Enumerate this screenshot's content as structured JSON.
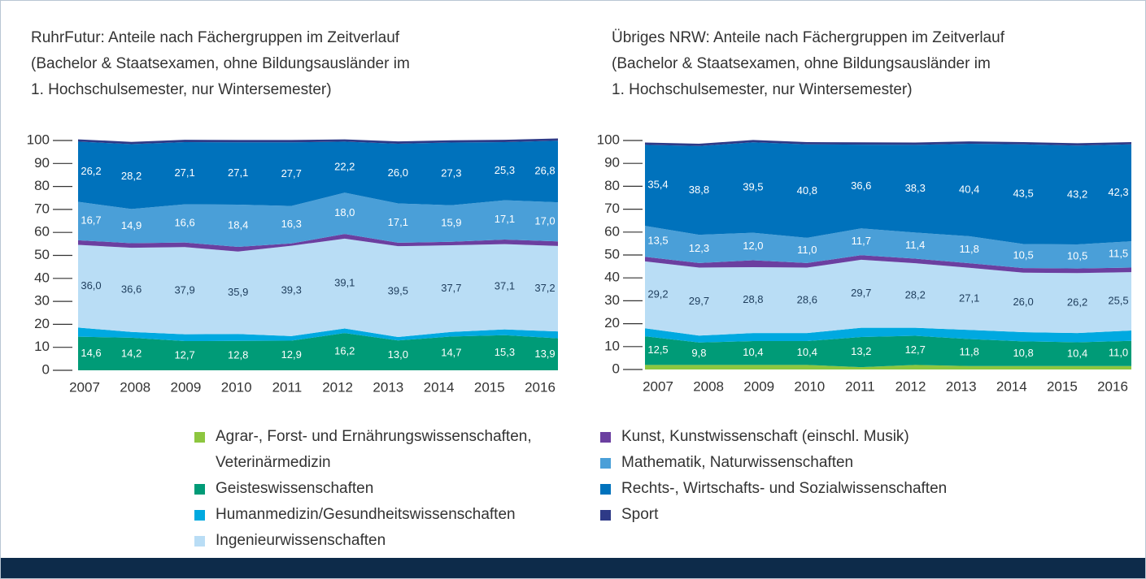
{
  "chart_data": [
    {
      "type": "stacked_area",
      "title": "RuhrFutur: Anteile nach Fächergruppen im Zeitverlauf",
      "subtitle": [
        "(Bachelor & Staatsexamen, ohne Bildungsausländer im",
        "1. Hochschulsemester, nur Wintersemester)"
      ],
      "categories": [
        "2007",
        "2008",
        "2009",
        "2010",
        "2011",
        "2012",
        "2013",
        "2014",
        "2015",
        "2016"
      ],
      "ylim": [
        0,
        100
      ],
      "yticks": [
        0,
        10,
        20,
        30,
        40,
        50,
        60,
        70,
        80,
        90,
        100
      ],
      "series": [
        {
          "name": "Agrar-, Forst- und Ernährungswissenschaften, Veterinärmedizin",
          "color": "#8dc63f",
          "values": [
            0,
            0,
            0,
            0,
            0,
            0,
            0,
            0,
            0,
            0
          ]
        },
        {
          "name": "Geisteswissenschaften",
          "color": "#009b77",
          "values": [
            14.6,
            14.2,
            12.7,
            12.8,
            12.9,
            16.2,
            13.0,
            14.7,
            15.3,
            13.9
          ],
          "value_labels": [
            "14,6",
            "14,2",
            "12,7",
            "12,8",
            "12,9",
            "16,2",
            "13,0",
            "14,7",
            "15,3",
            "13,9"
          ]
        },
        {
          "name": "Humanmedizin/Gesundheitswissenschaften",
          "color": "#00a9e0",
          "values": [
            4,
            2.5,
            3,
            3,
            2,
            2,
            1.5,
            2,
            2.5,
            3
          ]
        },
        {
          "name": "Ingenieurwissenschaften",
          "color": "#b9ddf5",
          "values": [
            36.0,
            36.6,
            37.9,
            35.9,
            39.3,
            39.1,
            39.5,
            37.7,
            37.1,
            37.2
          ],
          "value_labels": [
            "36,0",
            "36,6",
            "37,9",
            "35,9",
            "39,3",
            "39,1",
            "39,5",
            "37,7",
            "37,1",
            "37,2"
          ]
        },
        {
          "name": "Kunst, Kunstwissenschaft (einschl. Musik)",
          "color": "#6b3fa0",
          "values": [
            2,
            2,
            2,
            2,
            1,
            2,
            1.5,
            1.5,
            2,
            2
          ]
        },
        {
          "name": "Mathematik, Naturwissenschaften",
          "color": "#4a9fd8",
          "values": [
            16.7,
            14.9,
            16.6,
            18.4,
            16.3,
            18.0,
            17.1,
            15.9,
            17.1,
            17.0
          ],
          "value_labels": [
            "16,7",
            "14,9",
            "16,6",
            "18,4",
            "16,3",
            "18,0",
            "17,1",
            "15,9",
            "17,1",
            "17,0"
          ]
        },
        {
          "name": "Rechts-, Wirtschafts- und Sozialwissenschaften",
          "color": "#0072bc",
          "values": [
            26.2,
            28.2,
            27.1,
            27.1,
            27.7,
            22.2,
            26.0,
            27.3,
            25.3,
            26.8
          ],
          "value_labels": [
            "26,2",
            "28,2",
            "27,1",
            "27,1",
            "27,7",
            "22,2",
            "26,0",
            "27,3",
            "25,3",
            "26,8"
          ]
        },
        {
          "name": "Sport",
          "color": "#2e3a87",
          "values": [
            1,
            1,
            1,
            1,
            1,
            1,
            1,
            1,
            1,
            1
          ]
        }
      ]
    },
    {
      "type": "stacked_area",
      "title": "Übriges NRW: Anteile nach Fächergruppen im Zeitverlauf",
      "subtitle": [
        "(Bachelor & Staatsexamen, ohne Bildungsausländer im",
        "1. Hochschulsemester, nur Wintersemester)"
      ],
      "categories": [
        "2007",
        "2008",
        "2009",
        "2010",
        "2011",
        "2012",
        "2013",
        "2014",
        "2015",
        "2016"
      ],
      "ylim": [
        0,
        100
      ],
      "yticks": [
        0,
        10,
        20,
        30,
        40,
        50,
        60,
        70,
        80,
        90,
        100
      ],
      "series": [
        {
          "color": "#8dc63f",
          "values": [
            2,
            2,
            2,
            2,
            1,
            2,
            1.5,
            1.5,
            1.5,
            1.5
          ]
        },
        {
          "color": "#009b77",
          "values": [
            12.5,
            9.8,
            10.4,
            10.4,
            13.2,
            12.7,
            11.8,
            10.8,
            10.4,
            11.0
          ],
          "value_labels": [
            "12,5",
            "9,8",
            "10,4",
            "10,4",
            "13,2",
            "12,7",
            "11,8",
            "10,8",
            "10,4",
            "11,0"
          ]
        },
        {
          "color": "#00a9e0",
          "values": [
            3.5,
            3,
            3.5,
            3.5,
            4,
            3.5,
            4,
            4,
            4,
            4.5
          ]
        },
        {
          "color": "#b9ddf5",
          "values": [
            29.2,
            29.7,
            28.8,
            28.6,
            29.7,
            28.2,
            27.1,
            26.0,
            26.2,
            25.5
          ],
          "value_labels": [
            "29,2",
            "29,7",
            "28,8",
            "28,6",
            "29,7",
            "28,2",
            "27,1",
            "26,0",
            "26,2",
            "25,5"
          ]
        },
        {
          "color": "#6b3fa0",
          "values": [
            2,
            2,
            3,
            2,
            2,
            2,
            2,
            2,
            2,
            2
          ]
        },
        {
          "color": "#4a9fd8",
          "values": [
            13.5,
            12.3,
            12.0,
            11.0,
            11.7,
            11.4,
            11.8,
            10.5,
            10.5,
            11.5
          ],
          "value_labels": [
            "13,5",
            "12,3",
            "12,0",
            "11,0",
            "11,7",
            "11,4",
            "11,8",
            "10,5",
            "10,5",
            "11,5"
          ]
        },
        {
          "color": "#0072bc",
          "values": [
            35.4,
            38.8,
            39.5,
            40.8,
            36.6,
            38.3,
            40.4,
            43.5,
            43.2,
            42.3
          ],
          "value_labels": [
            "35,4",
            "38,8",
            "39,5",
            "40,8",
            "36,6",
            "38,3",
            "40,4",
            "43,5",
            "43,2",
            "42,3"
          ]
        },
        {
          "color": "#2e3a87",
          "values": [
            1,
            1,
            1,
            1,
            1,
            1,
            1,
            1,
            1,
            1
          ]
        }
      ]
    }
  ]
}
